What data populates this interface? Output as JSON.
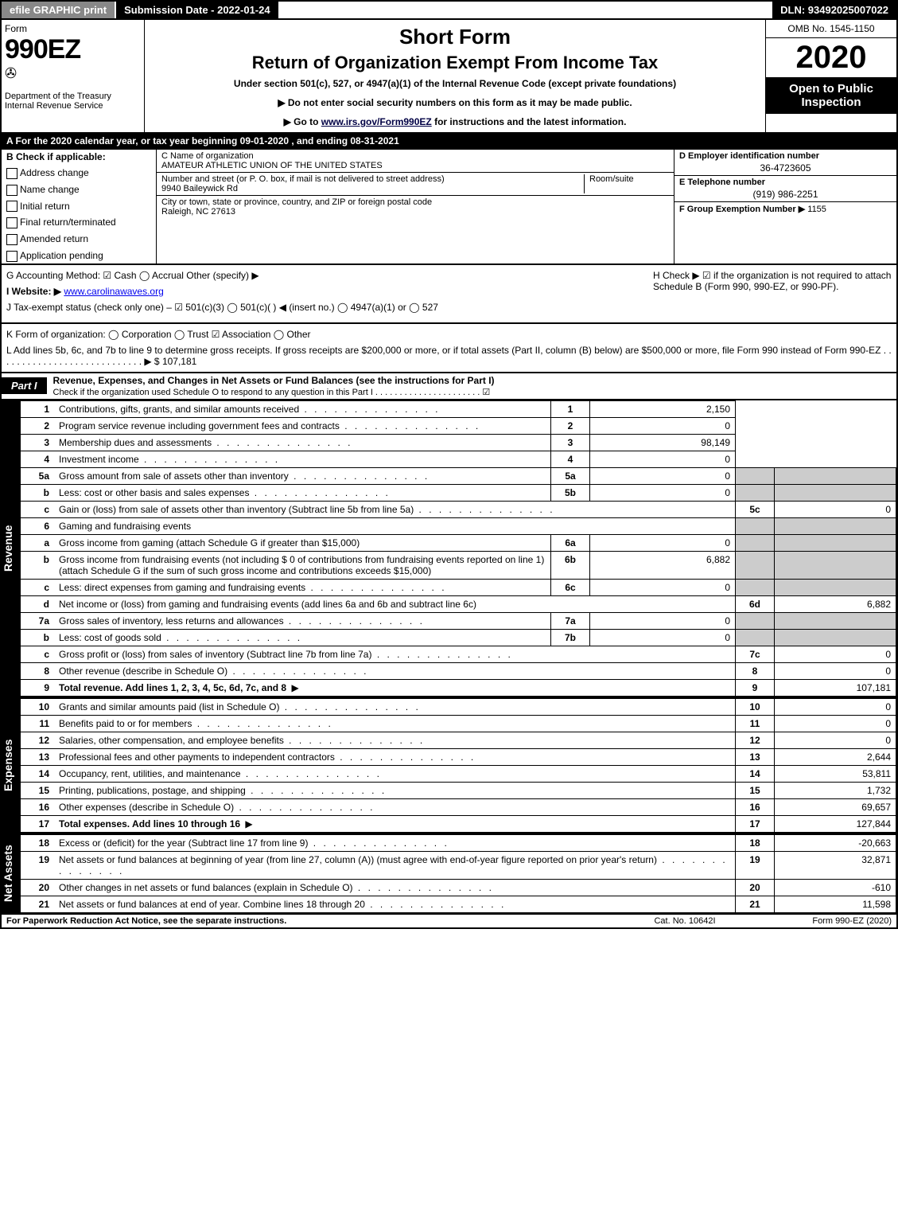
{
  "topbar": {
    "efile": "efile GRAPHIC print",
    "submission": "Submission Date - 2022-01-24",
    "dln": "DLN: 93492025007022"
  },
  "header": {
    "form_label": "Form",
    "form_no": "990EZ",
    "dept": "Department of the Treasury",
    "irs": "Internal Revenue Service",
    "title1": "Short Form",
    "title2": "Return of Organization Exempt From Income Tax",
    "subtitle": "Under section 501(c), 527, or 4947(a)(1) of the Internal Revenue Code (except private foundations)",
    "warn1": "▶ Do not enter social security numbers on this form as it may be made public.",
    "warn2_pre": "▶ Go to ",
    "warn2_link": "www.irs.gov/Form990EZ",
    "warn2_post": " for instructions and the latest information.",
    "omb": "OMB No. 1545-1150",
    "year": "2020",
    "open": "Open to Public Inspection"
  },
  "rowA": "A For the 2020 calendar year, or tax year beginning 09-01-2020 , and ending 08-31-2021",
  "colB": {
    "title": "B Check if applicable:",
    "opts": [
      "Address change",
      "Name change",
      "Initial return",
      "Final return/terminated",
      "Amended return",
      "Application pending"
    ]
  },
  "colC": {
    "c_lbl": "C Name of organization",
    "c_val": "AMATEUR ATHLETIC UNION OF THE UNITED STATES",
    "addr_lbl": "Number and street (or P. O. box, if mail is not delivered to street address)",
    "addr_val": "9940 Baileywick Rd",
    "room_lbl": "Room/suite",
    "city_lbl": "City or town, state or province, country, and ZIP or foreign postal code",
    "city_val": "Raleigh, NC  27613"
  },
  "colDE": {
    "d_lbl": "D Employer identification number",
    "d_val": "36-4723605",
    "e_lbl": "E Telephone number",
    "e_val": "(919) 986-2251",
    "f_lbl": "F Group Exemption Number ▶",
    "f_val": "1155"
  },
  "info": {
    "g": "G Accounting Method:  ☑ Cash  ◯ Accrual  Other (specify) ▶",
    "h": "H  Check ▶ ☑ if the organization is not required to attach Schedule B (Form 990, 990-EZ, or 990-PF).",
    "i_pre": "I Website: ▶",
    "i_val": "www.carolinawaves.org",
    "j": "J Tax-exempt status (check only one) – ☑ 501(c)(3)  ◯ 501(c)( ) ◀ (insert no.)  ◯ 4947(a)(1) or  ◯ 527",
    "k": "K Form of organization:  ◯ Corporation  ◯ Trust  ☑ Association  ◯ Other",
    "l": "L Add lines 5b, 6c, and 7b to line 9 to determine gross receipts. If gross receipts are $200,000 or more, or if total assets (Part II, column (B) below) are $500,000 or more, file Form 990 instead of Form 990-EZ  .  .  .  .  .  .  .  .  .  .  .  .  .  .  .  .  .  .  .  .  .  .  .  .  .  .  .  . ▶ $ 107,181"
  },
  "part1": {
    "label": "Part I",
    "title": "Revenue, Expenses, and Changes in Net Assets or Fund Balances (see the instructions for Part I)",
    "sub": "Check if the organization used Schedule O to respond to any question in this Part I  .  .  .  .  .  .  .  .  .  .  .  .  .  .  .  .  .  .  .  .  .  .   ☑"
  },
  "revenue_label": "Revenue",
  "expenses_label": "Expenses",
  "net_label": "Net Assets",
  "rows": {
    "r1": {
      "ln": "1",
      "desc": "Contributions, gifts, grants, and similar amounts received",
      "no": "1",
      "val": "2,150"
    },
    "r2": {
      "ln": "2",
      "desc": "Program service revenue including government fees and contracts",
      "no": "2",
      "val": "0"
    },
    "r3": {
      "ln": "3",
      "desc": "Membership dues and assessments",
      "no": "3",
      "val": "98,149"
    },
    "r4": {
      "ln": "4",
      "desc": "Investment income",
      "no": "4",
      "val": "0"
    },
    "r5a": {
      "ln": "5a",
      "desc": "Gross amount from sale of assets other than inventory",
      "subno": "5a",
      "subval": "0"
    },
    "r5b": {
      "ln": "b",
      "desc": "Less: cost or other basis and sales expenses",
      "subno": "5b",
      "subval": "0"
    },
    "r5c": {
      "ln": "c",
      "desc": "Gain or (loss) from sale of assets other than inventory (Subtract line 5b from line 5a)",
      "no": "5c",
      "val": "0"
    },
    "r6": {
      "ln": "6",
      "desc": "Gaming and fundraising events"
    },
    "r6a": {
      "ln": "a",
      "desc": "Gross income from gaming (attach Schedule G if greater than $15,000)",
      "subno": "6a",
      "subval": "0"
    },
    "r6b": {
      "ln": "b",
      "desc": "Gross income from fundraising events (not including $ 0 of contributions from fundraising events reported on line 1) (attach Schedule G if the sum of such gross income and contributions exceeds $15,000)",
      "subno": "6b",
      "subval": "6,882"
    },
    "r6c": {
      "ln": "c",
      "desc": "Less: direct expenses from gaming and fundraising events",
      "subno": "6c",
      "subval": "0"
    },
    "r6d": {
      "ln": "d",
      "desc": "Net income or (loss) from gaming and fundraising events (add lines 6a and 6b and subtract line 6c)",
      "no": "6d",
      "val": "6,882"
    },
    "r7a": {
      "ln": "7a",
      "desc": "Gross sales of inventory, less returns and allowances",
      "subno": "7a",
      "subval": "0"
    },
    "r7b": {
      "ln": "b",
      "desc": "Less: cost of goods sold",
      "subno": "7b",
      "subval": "0"
    },
    "r7c": {
      "ln": "c",
      "desc": "Gross profit or (loss) from sales of inventory (Subtract line 7b from line 7a)",
      "no": "7c",
      "val": "0"
    },
    "r8": {
      "ln": "8",
      "desc": "Other revenue (describe in Schedule O)",
      "no": "8",
      "val": "0"
    },
    "r9": {
      "ln": "9",
      "desc": "Total revenue. Add lines 1, 2, 3, 4, 5c, 6d, 7c, and 8",
      "no": "9",
      "val": "107,181"
    },
    "r10": {
      "ln": "10",
      "desc": "Grants and similar amounts paid (list in Schedule O)",
      "no": "10",
      "val": "0"
    },
    "r11": {
      "ln": "11",
      "desc": "Benefits paid to or for members",
      "no": "11",
      "val": "0"
    },
    "r12": {
      "ln": "12",
      "desc": "Salaries, other compensation, and employee benefits",
      "no": "12",
      "val": "0"
    },
    "r13": {
      "ln": "13",
      "desc": "Professional fees and other payments to independent contractors",
      "no": "13",
      "val": "2,644"
    },
    "r14": {
      "ln": "14",
      "desc": "Occupancy, rent, utilities, and maintenance",
      "no": "14",
      "val": "53,811"
    },
    "r15": {
      "ln": "15",
      "desc": "Printing, publications, postage, and shipping",
      "no": "15",
      "val": "1,732"
    },
    "r16": {
      "ln": "16",
      "desc": "Other expenses (describe in Schedule O)",
      "no": "16",
      "val": "69,657"
    },
    "r17": {
      "ln": "17",
      "desc": "Total expenses. Add lines 10 through 16",
      "no": "17",
      "val": "127,844"
    },
    "r18": {
      "ln": "18",
      "desc": "Excess or (deficit) for the year (Subtract line 17 from line 9)",
      "no": "18",
      "val": "-20,663"
    },
    "r19": {
      "ln": "19",
      "desc": "Net assets or fund balances at beginning of year (from line 27, column (A)) (must agree with end-of-year figure reported on prior year's return)",
      "no": "19",
      "val": "32,871"
    },
    "r20": {
      "ln": "20",
      "desc": "Other changes in net assets or fund balances (explain in Schedule O)",
      "no": "20",
      "val": "-610"
    },
    "r21": {
      "ln": "21",
      "desc": "Net assets or fund balances at end of year. Combine lines 18 through 20",
      "no": "21",
      "val": "11,598"
    }
  },
  "footer": {
    "left": "For Paperwork Reduction Act Notice, see the separate instructions.",
    "mid": "Cat. No. 10642I",
    "right": "Form 990-EZ (2020)"
  }
}
